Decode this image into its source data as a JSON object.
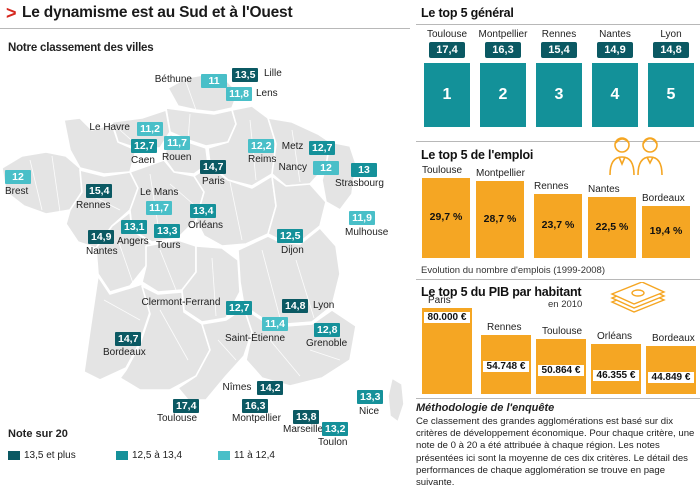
{
  "title": "Le dynamisme est au Sud et à l'Ouest",
  "title_arrow": ">",
  "map": {
    "subtitle": "Notre classement des villes",
    "cities": [
      {
        "name": "Béthune",
        "score": "11",
        "tier": "light"
      },
      {
        "name": "Lille",
        "score": "13,5",
        "tier": "dark"
      },
      {
        "name": "Lens",
        "score": "11,8",
        "tier": "light"
      },
      {
        "name": "Le Havre",
        "score": "11,2",
        "tier": "light"
      },
      {
        "name": "Caen",
        "score": "12,7",
        "tier": "mid"
      },
      {
        "name": "Rouen",
        "score": "11,7",
        "tier": "light"
      },
      {
        "name": "Reims",
        "score": "12,2",
        "tier": "light"
      },
      {
        "name": "Metz",
        "score": "12,7",
        "tier": "mid"
      },
      {
        "name": "Nancy",
        "score": "12",
        "tier": "light"
      },
      {
        "name": "Strasbourg",
        "score": "13",
        "tier": "mid"
      },
      {
        "name": "Paris",
        "score": "14,7",
        "tier": "dark"
      },
      {
        "name": "Brest",
        "score": "12",
        "tier": "light"
      },
      {
        "name": "Rennes",
        "score": "15,4",
        "tier": "dark"
      },
      {
        "name": "Le Mans",
        "score": "11,7",
        "tier": "light"
      },
      {
        "name": "Angers",
        "score": "13,1",
        "tier": "mid"
      },
      {
        "name": "Tours",
        "score": "13,3",
        "tier": "mid"
      },
      {
        "name": "Orléans",
        "score": "13,4",
        "tier": "mid"
      },
      {
        "name": "Nantes",
        "score": "14,9",
        "tier": "dark"
      },
      {
        "name": "Mulhouse",
        "score": "11,9",
        "tier": "light"
      },
      {
        "name": "Dijon",
        "score": "12,5",
        "tier": "mid"
      },
      {
        "name": "Clermont-Ferrand",
        "score": "12,7",
        "tier": "mid"
      },
      {
        "name": "Lyon",
        "score": "14,8",
        "tier": "dark"
      },
      {
        "name": "Saint-Étienne",
        "score": "11,4",
        "tier": "light"
      },
      {
        "name": "Grenoble",
        "score": "12,8",
        "tier": "mid"
      },
      {
        "name": "Bordeaux",
        "score": "14,7",
        "tier": "dark"
      },
      {
        "name": "Nîmes",
        "score": "14,2",
        "tier": "dark"
      },
      {
        "name": "Toulouse",
        "score": "17,4",
        "tier": "dark"
      },
      {
        "name": "Montpellier",
        "score": "16,3",
        "tier": "dark"
      },
      {
        "name": "Marseille",
        "score": "13,8",
        "tier": "dark"
      },
      {
        "name": "Toulon",
        "score": "13,2",
        "tier": "mid"
      },
      {
        "name": "Nice",
        "score": "13,3",
        "tier": "mid"
      }
    ]
  },
  "legend": {
    "title": "Note sur 20",
    "items": [
      {
        "label": "13,5 et plus",
        "color": "#0b5963"
      },
      {
        "label": "12,5 à 13,4",
        "color": "#15919a"
      },
      {
        "label": "11 à 12,4",
        "color": "#49bfc8"
      }
    ]
  },
  "top5_general": {
    "title": "Le top 5 général",
    "items": [
      {
        "city": "Toulouse",
        "score": "17,4",
        "rank": "1"
      },
      {
        "city": "Montpellier",
        "score": "16,3",
        "rank": "2"
      },
      {
        "city": "Rennes",
        "score": "15,4",
        "rank": "3"
      },
      {
        "city": "Nantes",
        "score": "14,9",
        "rank": "4"
      },
      {
        "city": "Lyon",
        "score": "14,8",
        "rank": "5"
      }
    ]
  },
  "top5_emploi": {
    "title": "Le top 5 de l'emploi",
    "note": "Evolution du nombre d'emplois (1999-2008)",
    "items": [
      {
        "city": "Toulouse",
        "label": "29,7 %",
        "value": 29.7
      },
      {
        "city": "Montpellier",
        "label": "28,7 %",
        "value": 28.7
      },
      {
        "city": "Rennes",
        "label": "23,7 %",
        "value": 23.7
      },
      {
        "city": "Nantes",
        "label": "22,5 %",
        "value": 22.5
      },
      {
        "city": "Bordeaux",
        "label": "19,4 %",
        "value": 19.4
      }
    ]
  },
  "top5_pib": {
    "title": "Le top 5 du PIB par habitant",
    "note": "en 2010",
    "items": [
      {
        "city": "Paris",
        "label": "80.000 €",
        "value": 80000
      },
      {
        "city": "Rennes",
        "label": "54.748 €",
        "value": 54748
      },
      {
        "city": "Toulouse",
        "label": "50.864 €",
        "value": 50864
      },
      {
        "city": "Orléans",
        "label": "46.355 €",
        "value": 46355
      },
      {
        "city": "Bordeaux",
        "label": "44.849 €",
        "value": 44849
      }
    ]
  },
  "methodology": {
    "title": "Méthodologie de l'enquête",
    "text": "Ce classement des grandes agglomérations est basé sur dix critères de développement économique. Pour chaque critère, une note de 0 à 20 a été attribuée à chaque région. Les notes présentées ici sont la moyenne de ces dix critères. Le détail des performances de chaque agglomération se trouve en page suivante."
  },
  "colors": {
    "dark": "#0b5963",
    "mid": "#15919a",
    "light": "#49bfc8",
    "orange": "#f5a623",
    "title_arrow": "#d6281f"
  },
  "icons": [
    "people-icon",
    "banknotes-icon"
  ]
}
